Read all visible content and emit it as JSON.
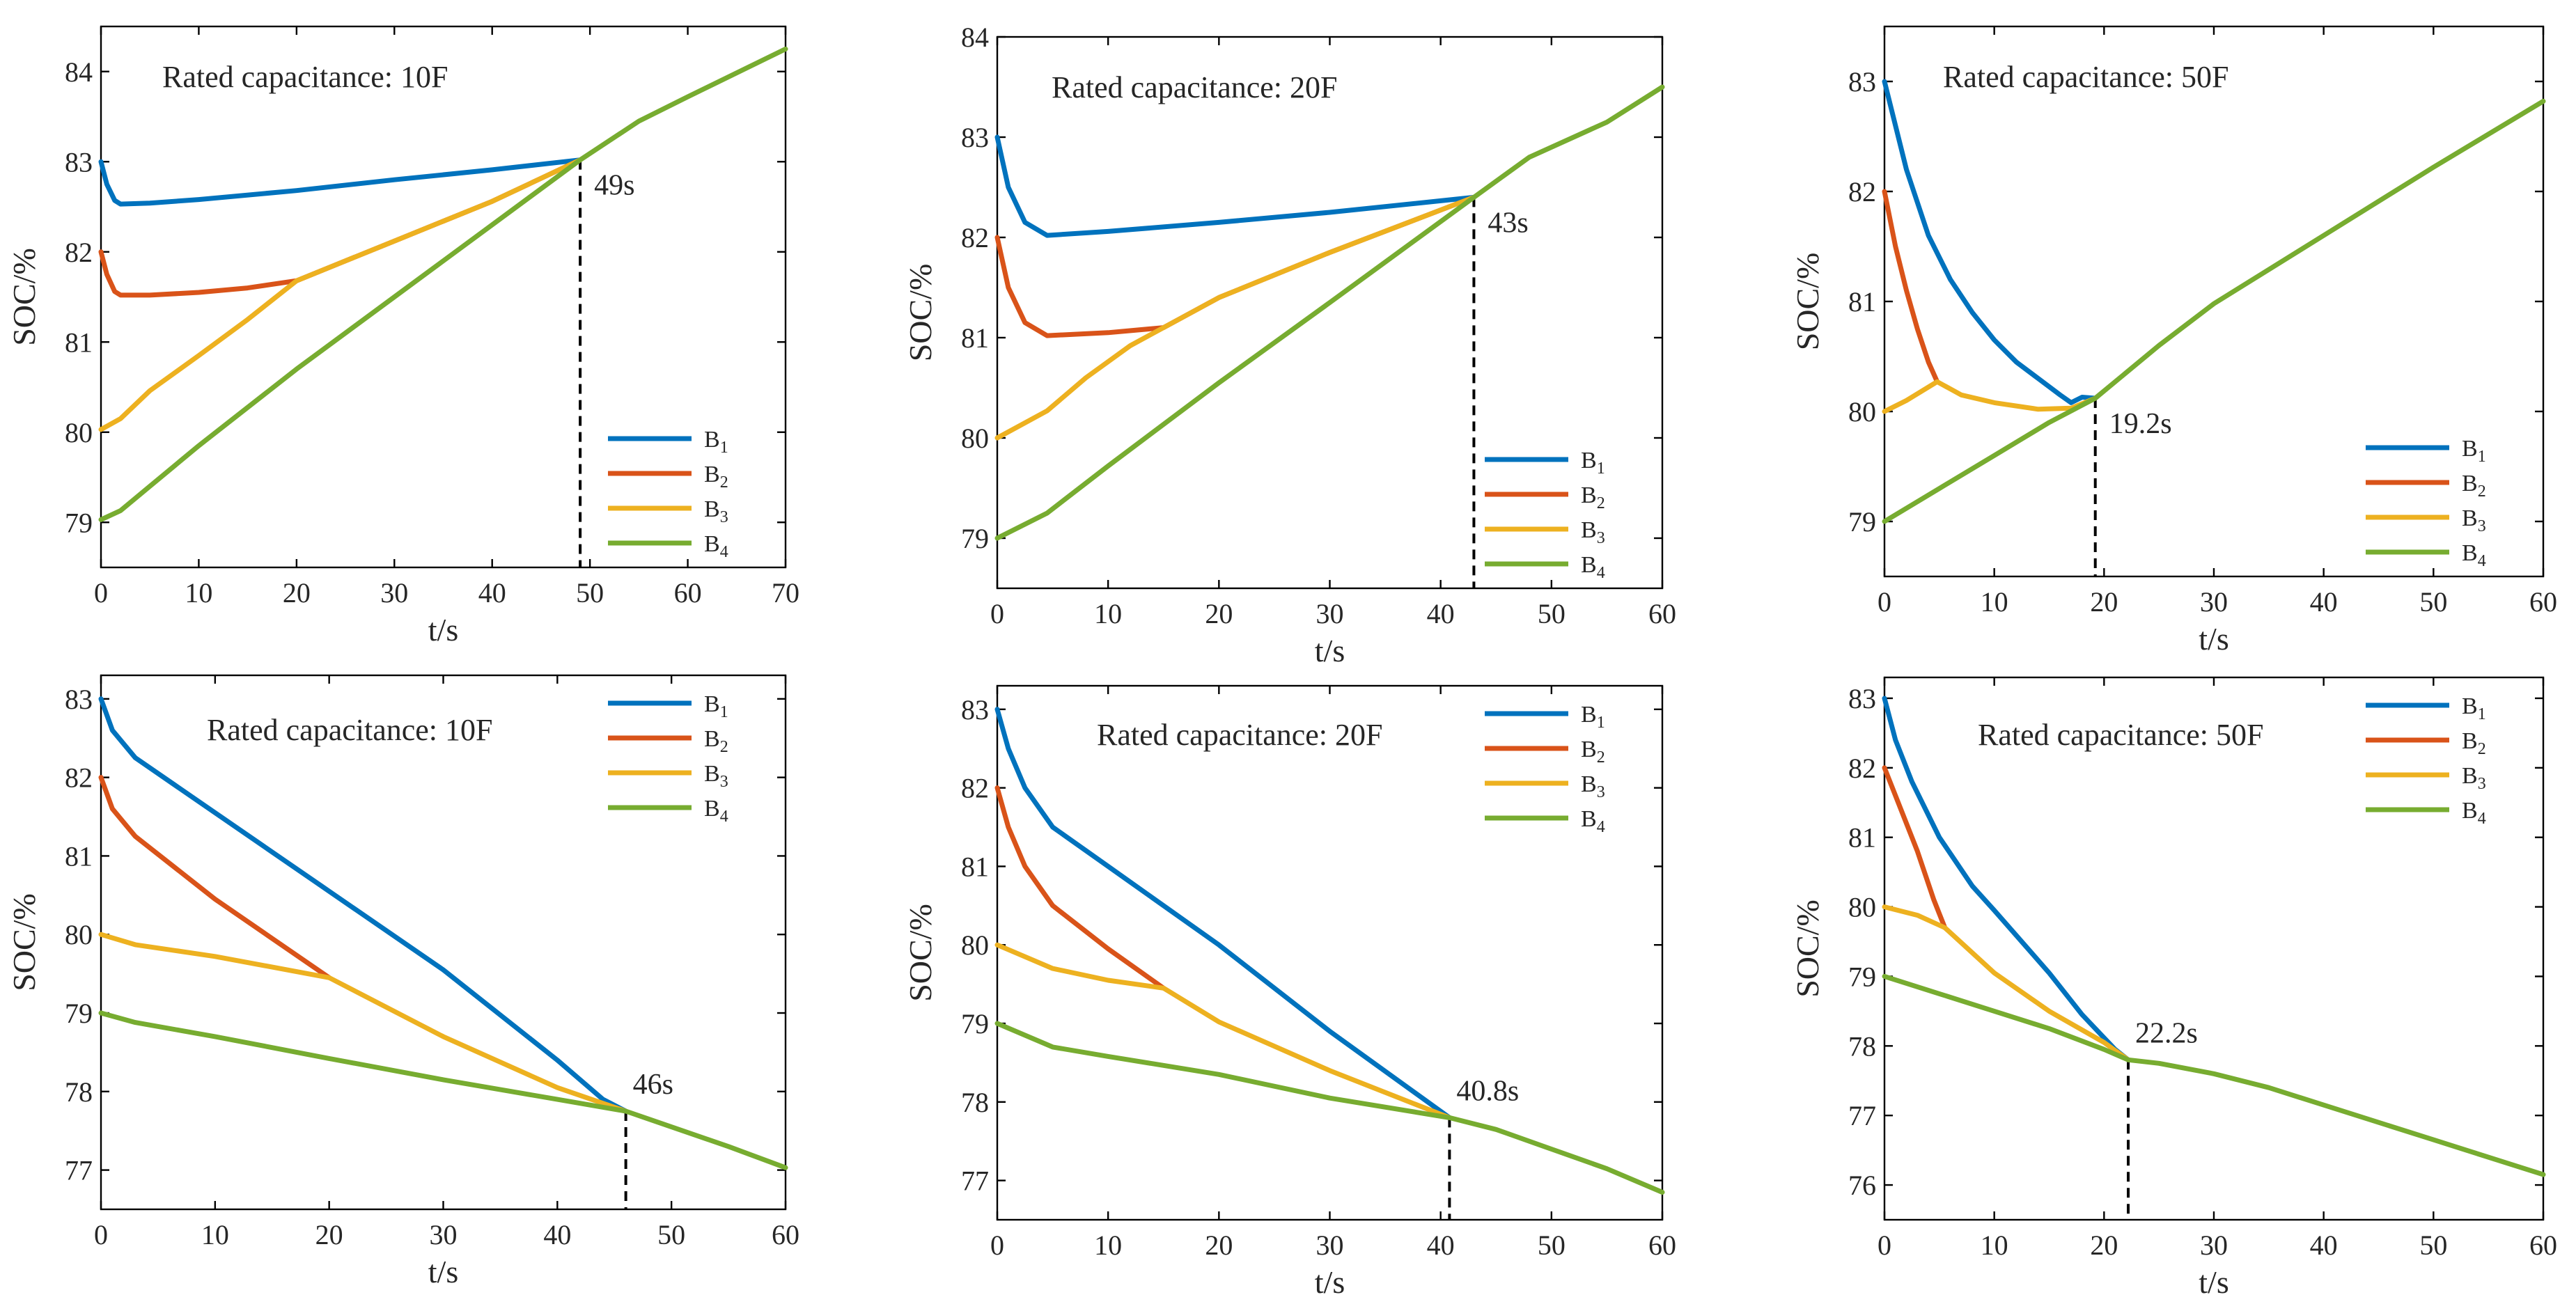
{
  "chart_data": [
    {
      "type": "line",
      "title": "Rated capacitance: 10F",
      "xlabel": "t/s",
      "ylabel": "SOC/%",
      "xlim": [
        0,
        70
      ],
      "ylim": [
        78.5,
        84.5
      ],
      "xticks": [
        0,
        10,
        20,
        30,
        40,
        50,
        60,
        70
      ],
      "yticks": [
        79,
        80,
        81,
        82,
        83,
        84
      ],
      "legend_position": "bottom-right",
      "annotation": {
        "text": "49s",
        "x": 49
      },
      "series": [
        {
          "name": "B1",
          "color": "#0072BD",
          "points": [
            [
              0,
              83
            ],
            [
              0.6,
              82.75
            ],
            [
              1.4,
              82.57
            ],
            [
              2,
              82.53
            ],
            [
              5,
              82.54
            ],
            [
              10,
              82.58
            ],
            [
              20,
              82.68
            ],
            [
              30,
              82.8
            ],
            [
              40,
              82.91
            ],
            [
              49,
              83.02
            ]
          ]
        },
        {
          "name": "B2",
          "color": "#D95319",
          "points": [
            [
              0,
              82
            ],
            [
              0.6,
              81.75
            ],
            [
              1.4,
              81.56
            ],
            [
              2,
              81.52
            ],
            [
              5,
              81.52
            ],
            [
              10,
              81.55
            ],
            [
              15,
              81.6
            ],
            [
              20,
              81.68
            ],
            [
              30,
              82.12
            ],
            [
              40,
              82.56
            ],
            [
              49,
              83.02
            ]
          ]
        },
        {
          "name": "B3",
          "color": "#EDB120",
          "points": [
            [
              0,
              80.03
            ],
            [
              2,
              80.15
            ],
            [
              5,
              80.46
            ],
            [
              10,
              80.85
            ],
            [
              15,
              81.25
            ],
            [
              20,
              81.68
            ],
            [
              30,
              82.12
            ],
            [
              40,
              82.56
            ],
            [
              49,
              83.02
            ]
          ]
        },
        {
          "name": "B4",
          "color": "#77AC30",
          "points": [
            [
              0,
              79.03
            ],
            [
              2,
              79.13
            ],
            [
              5,
              79.4
            ],
            [
              10,
              79.85
            ],
            [
              20,
              80.7
            ],
            [
              30,
              81.5
            ],
            [
              40,
              82.3
            ],
            [
              49,
              83.02
            ],
            [
              55,
              83.45
            ],
            [
              60,
              83.72
            ],
            [
              70,
              84.25
            ]
          ]
        }
      ]
    },
    {
      "type": "line",
      "title": "Rated capacitance: 20F",
      "xlabel": "t/s",
      "ylabel": "SOC/%",
      "xlim": [
        0,
        60
      ],
      "ylim": [
        78.5,
        84
      ],
      "xticks": [
        0,
        10,
        20,
        30,
        40,
        50,
        60
      ],
      "yticks": [
        79,
        80,
        81,
        82,
        83,
        84
      ],
      "legend_position": "bottom-right",
      "annotation": {
        "text": "43s",
        "x": 43
      },
      "series": [
        {
          "name": "B1",
          "color": "#0072BD",
          "points": [
            [
              0,
              83
            ],
            [
              1,
              82.5
            ],
            [
              2.5,
              82.15
            ],
            [
              4.5,
              82.02
            ],
            [
              10,
              82.06
            ],
            [
              20,
              82.15
            ],
            [
              30,
              82.25
            ],
            [
              43,
              82.4
            ]
          ]
        },
        {
          "name": "B2",
          "color": "#D95319",
          "points": [
            [
              0,
              82
            ],
            [
              1,
              81.5
            ],
            [
              2.5,
              81.15
            ],
            [
              4.5,
              81.02
            ],
            [
              10,
              81.05
            ],
            [
              15,
              81.1
            ],
            [
              20,
              81.4
            ],
            [
              30,
              81.85
            ],
            [
              43,
              82.4
            ]
          ]
        },
        {
          "name": "B3",
          "color": "#EDB120",
          "points": [
            [
              0,
              80
            ],
            [
              4.5,
              80.27
            ],
            [
              8,
              80.6
            ],
            [
              12,
              80.92
            ],
            [
              15,
              81.1
            ],
            [
              20,
              81.4
            ],
            [
              30,
              81.85
            ],
            [
              43,
              82.4
            ]
          ]
        },
        {
          "name": "B4",
          "color": "#77AC30",
          "points": [
            [
              0,
              79
            ],
            [
              4.5,
              79.25
            ],
            [
              10,
              79.72
            ],
            [
              20,
              80.55
            ],
            [
              30,
              81.35
            ],
            [
              43,
              82.4
            ],
            [
              48,
              82.8
            ],
            [
              55,
              83.15
            ],
            [
              60,
              83.5
            ]
          ]
        }
      ]
    },
    {
      "type": "line",
      "title": "Rated capacitance: 50F",
      "xlabel": "t/s",
      "ylabel": "SOC/%",
      "xlim": [
        0,
        60
      ],
      "ylim": [
        78.5,
        83.5
      ],
      "xticks": [
        0,
        10,
        20,
        30,
        40,
        50,
        60
      ],
      "yticks": [
        79,
        80,
        81,
        82,
        83
      ],
      "legend_position": "bottom-right",
      "annotation": {
        "text": "19.2s",
        "x": 19.2
      },
      "series": [
        {
          "name": "B1",
          "color": "#0072BD",
          "points": [
            [
              0,
              83
            ],
            [
              2,
              82.2
            ],
            [
              4,
              81.6
            ],
            [
              6,
              81.2
            ],
            [
              8,
              80.9
            ],
            [
              10,
              80.65
            ],
            [
              12,
              80.45
            ],
            [
              14,
              80.3
            ],
            [
              16,
              80.15
            ],
            [
              17,
              80.08
            ],
            [
              18,
              80.13
            ],
            [
              19.2,
              80.12
            ]
          ]
        },
        {
          "name": "B2",
          "color": "#D95319",
          "points": [
            [
              0,
              82
            ],
            [
              1,
              81.5
            ],
            [
              2,
              81.1
            ],
            [
              3,
              80.75
            ],
            [
              4,
              80.45
            ],
            [
              4.8,
              80.27
            ]
          ]
        },
        {
          "name": "B3",
          "color": "#EDB120",
          "points": [
            [
              0,
              80
            ],
            [
              2,
              80.1
            ],
            [
              4.8,
              80.27
            ],
            [
              7,
              80.15
            ],
            [
              10,
              80.08
            ],
            [
              14,
              80.02
            ],
            [
              17,
              80.03
            ],
            [
              19.2,
              80.12
            ]
          ]
        },
        {
          "name": "B4",
          "color": "#77AC30",
          "points": [
            [
              0,
              79
            ],
            [
              5,
              79.3
            ],
            [
              10,
              79.6
            ],
            [
              15,
              79.9
            ],
            [
              19.2,
              80.12
            ],
            [
              25,
              80.6
            ],
            [
              30,
              80.98
            ],
            [
              40,
              81.6
            ],
            [
              50,
              82.22
            ],
            [
              60,
              82.82
            ]
          ]
        }
      ]
    },
    {
      "type": "line",
      "title": "Rated capacitance: 10F",
      "xlabel": "t/s",
      "ylabel": "SOC/%",
      "xlim": [
        0,
        60
      ],
      "ylim": [
        76.5,
        83.3
      ],
      "xticks": [
        0,
        10,
        20,
        30,
        40,
        50,
        60
      ],
      "yticks": [
        77,
        78,
        79,
        80,
        81,
        82,
        83
      ],
      "legend_position": "top-right",
      "annotation": {
        "text": "46s",
        "x": 46
      },
      "series": [
        {
          "name": "B1",
          "color": "#0072BD",
          "points": [
            [
              0,
              83
            ],
            [
              1,
              82.6
            ],
            [
              3,
              82.25
            ],
            [
              10,
              81.55
            ],
            [
              20,
              80.55
            ],
            [
              30,
              79.55
            ],
            [
              40,
              78.4
            ],
            [
              44,
              77.9
            ],
            [
              46,
              77.75
            ]
          ]
        },
        {
          "name": "B2",
          "color": "#D95319",
          "points": [
            [
              0,
              82
            ],
            [
              1,
              81.6
            ],
            [
              3,
              81.25
            ],
            [
              10,
              80.45
            ],
            [
              20,
              79.45
            ]
          ]
        },
        {
          "name": "B3",
          "color": "#EDB120",
          "points": [
            [
              0,
              80
            ],
            [
              3,
              79.87
            ],
            [
              10,
              79.72
            ],
            [
              20,
              79.45
            ],
            [
              30,
              78.7
            ],
            [
              40,
              78.05
            ],
            [
              46,
              77.75
            ]
          ]
        },
        {
          "name": "B4",
          "color": "#77AC30",
          "points": [
            [
              0,
              79
            ],
            [
              3,
              78.88
            ],
            [
              10,
              78.7
            ],
            [
              20,
              78.42
            ],
            [
              30,
              78.15
            ],
            [
              40,
              77.9
            ],
            [
              46,
              77.75
            ],
            [
              48,
              77.65
            ],
            [
              55,
              77.3
            ],
            [
              60,
              77.03
            ]
          ]
        }
      ]
    },
    {
      "type": "line",
      "title": "Rated capacitance: 20F",
      "xlabel": "t/s",
      "ylabel": "SOC/%",
      "xlim": [
        0,
        60
      ],
      "ylim": [
        76.5,
        83.3
      ],
      "xticks": [
        0,
        10,
        20,
        30,
        40,
        50,
        60
      ],
      "yticks": [
        77,
        78,
        79,
        80,
        81,
        82,
        83
      ],
      "legend_position": "top-right",
      "annotation": {
        "text": "40.8s",
        "x": 40.8
      },
      "series": [
        {
          "name": "B1",
          "color": "#0072BD",
          "points": [
            [
              0,
              83
            ],
            [
              1,
              82.5
            ],
            [
              2.5,
              82
            ],
            [
              5,
              81.5
            ],
            [
              10,
              81
            ],
            [
              20,
              80
            ],
            [
              30,
              78.9
            ],
            [
              40.8,
              77.8
            ]
          ]
        },
        {
          "name": "B2",
          "color": "#D95319",
          "points": [
            [
              0,
              82
            ],
            [
              1,
              81.5
            ],
            [
              2.5,
              81
            ],
            [
              5,
              80.5
            ],
            [
              10,
              79.95
            ],
            [
              15,
              79.45
            ]
          ]
        },
        {
          "name": "B3",
          "color": "#EDB120",
          "points": [
            [
              0,
              80
            ],
            [
              5,
              79.7
            ],
            [
              10,
              79.55
            ],
            [
              15,
              79.45
            ],
            [
              20,
              79.02
            ],
            [
              30,
              78.4
            ],
            [
              40.8,
              77.8
            ]
          ]
        },
        {
          "name": "B4",
          "color": "#77AC30",
          "points": [
            [
              0,
              79
            ],
            [
              5,
              78.7
            ],
            [
              10,
              78.58
            ],
            [
              20,
              78.35
            ],
            [
              30,
              78.05
            ],
            [
              40.8,
              77.8
            ],
            [
              45,
              77.65
            ],
            [
              50,
              77.4
            ],
            [
              55,
              77.15
            ],
            [
              60,
              76.85
            ]
          ]
        }
      ]
    },
    {
      "type": "line",
      "title": "Rated capacitance: 50F",
      "xlabel": "t/s",
      "ylabel": "SOC/%",
      "xlim": [
        0,
        60
      ],
      "ylim": [
        75.5,
        83.3
      ],
      "xticks": [
        0,
        10,
        20,
        30,
        40,
        50,
        60
      ],
      "yticks": [
        76,
        77,
        78,
        79,
        80,
        81,
        82,
        83
      ],
      "legend_position": "top-right",
      "annotation": {
        "text": "22.2s",
        "x": 22.2
      },
      "series": [
        {
          "name": "B1",
          "color": "#0072BD",
          "points": [
            [
              0,
              83
            ],
            [
              1,
              82.4
            ],
            [
              2.5,
              81.8
            ],
            [
              5,
              81
            ],
            [
              8,
              80.3
            ],
            [
              10,
              79.95
            ],
            [
              15,
              79.05
            ],
            [
              18,
              78.45
            ],
            [
              21,
              77.95
            ],
            [
              22.2,
              77.8
            ]
          ]
        },
        {
          "name": "B2",
          "color": "#D95319",
          "points": [
            [
              0,
              82
            ],
            [
              1.5,
              81.4
            ],
            [
              3,
              80.8
            ],
            [
              4.5,
              80.1
            ],
            [
              5.5,
              79.7
            ]
          ]
        },
        {
          "name": "B3",
          "color": "#EDB120",
          "points": [
            [
              0,
              80
            ],
            [
              3,
              79.88
            ],
            [
              5.5,
              79.7
            ],
            [
              10,
              79.05
            ],
            [
              15,
              78.5
            ],
            [
              20,
              78.05
            ],
            [
              22.2,
              77.8
            ]
          ]
        },
        {
          "name": "B4",
          "color": "#77AC30",
          "points": [
            [
              0,
              79
            ],
            [
              5,
              78.75
            ],
            [
              10,
              78.5
            ],
            [
              15,
              78.25
            ],
            [
              20,
              77.95
            ],
            [
              22.2,
              77.8
            ],
            [
              25,
              77.75
            ],
            [
              30,
              77.6
            ],
            [
              35,
              77.4
            ],
            [
              40,
              77.15
            ],
            [
              50,
              76.65
            ],
            [
              60,
              76.15
            ]
          ]
        }
      ]
    }
  ]
}
